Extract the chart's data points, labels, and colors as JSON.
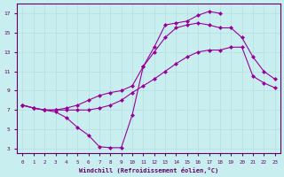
{
  "xlabel": "Windchill (Refroidissement éolien,°C)",
  "bg_color": "#c8eef0",
  "line_color": "#990099",
  "grid_color": "#b8dfe0",
  "axis_color": "#660066",
  "xlim": [
    -0.5,
    23.5
  ],
  "ylim": [
    2.5,
    18
  ],
  "xticks": [
    0,
    1,
    2,
    3,
    4,
    5,
    6,
    7,
    8,
    9,
    10,
    11,
    12,
    13,
    14,
    15,
    16,
    17,
    18,
    19,
    20,
    21,
    22,
    23
  ],
  "yticks": [
    3,
    5,
    7,
    9,
    11,
    13,
    15,
    17
  ],
  "line1_x": [
    0,
    1,
    2,
    3,
    4,
    5,
    6,
    7,
    8,
    9,
    10,
    11,
    12,
    13,
    14,
    15,
    16,
    17,
    18,
    19,
    20,
    21,
    22,
    23
  ],
  "line1_y": [
    7.5,
    7.2,
    7.0,
    6.8,
    6.2,
    5.2,
    4.4,
    3.2,
    3.1,
    3.1,
    6.5,
    11.5,
    13.5,
    15.8,
    16.0,
    16.2,
    16.8,
    17.2,
    17.0,
    null,
    null,
    null,
    null,
    null
  ],
  "line2_x": [
    0,
    1,
    2,
    3,
    4,
    5,
    6,
    7,
    8,
    9,
    10,
    11,
    12,
    13,
    14,
    15,
    16,
    17,
    18,
    19,
    20,
    21,
    22,
    23
  ],
  "line2_y": [
    7.5,
    7.2,
    7.0,
    7.0,
    7.0,
    7.0,
    7.0,
    7.2,
    7.5,
    8.0,
    8.8,
    9.5,
    10.2,
    11.0,
    11.8,
    12.5,
    13.0,
    13.2,
    13.2,
    13.5,
    13.5,
    10.5,
    9.8,
    9.3
  ],
  "line3_x": [
    0,
    1,
    2,
    3,
    4,
    5,
    6,
    7,
    8,
    9,
    10,
    11,
    12,
    13,
    14,
    15,
    16,
    17,
    18,
    19,
    20,
    21,
    22,
    23
  ],
  "line3_y": [
    7.5,
    7.2,
    7.0,
    7.0,
    7.2,
    7.5,
    8.0,
    8.5,
    8.8,
    9.0,
    9.5,
    11.5,
    13.0,
    14.5,
    15.5,
    15.8,
    16.0,
    15.8,
    15.5,
    15.5,
    14.5,
    12.5,
    11.0,
    10.2
  ]
}
